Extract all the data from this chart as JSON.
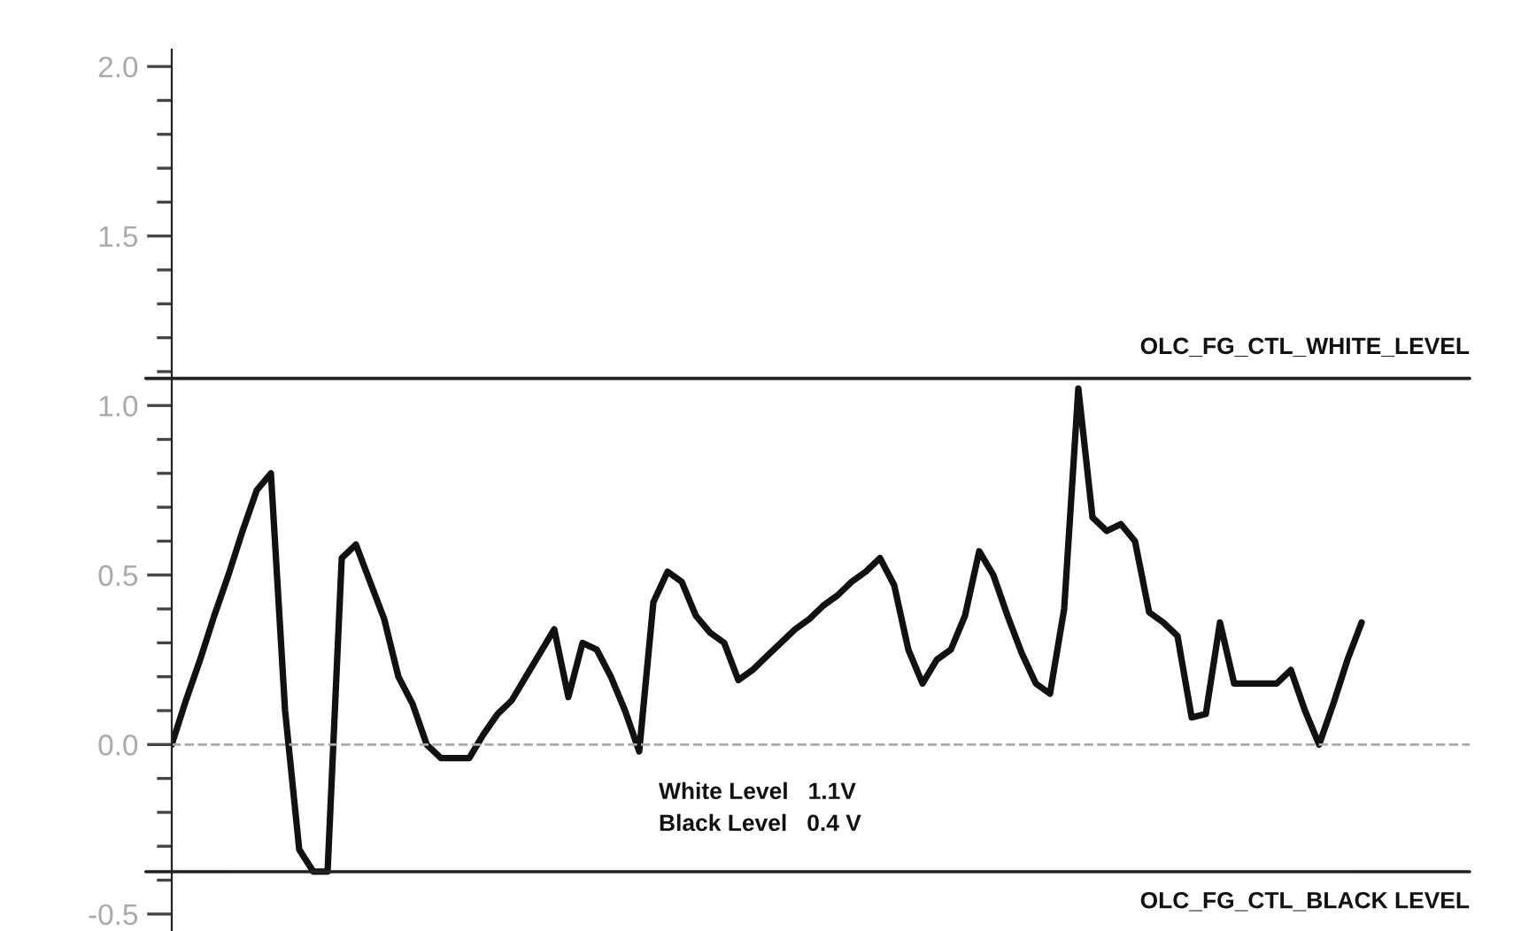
{
  "chart_data": {
    "type": "line",
    "categories": [
      null,
      null,
      null,
      null,
      null,
      null,
      null,
      null,
      null,
      null,
      null,
      null,
      null,
      null,
      null,
      null,
      null,
      null,
      null,
      null,
      null,
      null,
      null,
      null,
      null,
      null,
      null,
      null,
      null,
      null,
      null,
      null,
      null,
      null,
      null,
      null,
      null,
      null,
      null,
      null,
      null,
      null,
      null,
      null,
      null,
      null,
      null,
      null,
      null,
      null,
      null,
      null,
      null,
      null,
      null,
      null,
      null,
      null,
      null,
      null,
      null,
      null,
      null,
      null,
      null,
      null,
      null,
      null,
      null,
      null,
      null,
      null,
      null,
      null,
      null,
      null,
      null,
      null,
      null,
      null,
      null,
      null,
      null,
      null,
      null
    ],
    "series": [
      {
        "color": "#111111",
        "values": [
          0.0,
          0.13,
          0.25,
          0.38,
          0.5,
          0.63,
          0.75,
          0.8,
          0.1,
          -0.31,
          -0.375,
          -0.375,
          0.55,
          0.59,
          0.48,
          0.37,
          0.2,
          0.12,
          0.0,
          -0.04,
          -0.04,
          -0.04,
          0.03,
          0.09,
          0.13,
          0.2,
          0.27,
          0.34,
          0.14,
          0.3,
          0.28,
          0.2,
          0.1,
          -0.02,
          0.42,
          0.51,
          0.48,
          0.38,
          0.33,
          0.3,
          0.19,
          0.22,
          0.26,
          0.3,
          0.34,
          0.37,
          0.41,
          0.44,
          0.48,
          0.51,
          0.55,
          0.47,
          0.28,
          0.18,
          0.25,
          0.28,
          0.38,
          0.57,
          0.5,
          0.38,
          0.27,
          0.18,
          0.15,
          0.4,
          1.05,
          0.67,
          0.63,
          0.65,
          0.6,
          0.39,
          0.36,
          0.32,
          0.08,
          0.09,
          0.36,
          0.18,
          0.18,
          0.18,
          0.18,
          0.22,
          0.1,
          0.0,
          0.12,
          0.25,
          0.36
        ]
      }
    ],
    "ylim": [
      -0.55,
      2.05
    ],
    "yticks": [
      {
        "value": -0.5,
        "label": "-0.5"
      },
      {
        "value": -0.4,
        "label": null
      },
      {
        "value": -0.3,
        "label": null
      },
      {
        "value": -0.2,
        "label": null
      },
      {
        "value": -0.1,
        "label": null
      },
      {
        "value": 0,
        "label": "0.0"
      },
      {
        "value": 0.1,
        "label": null
      },
      {
        "value": 0.2,
        "label": null
      },
      {
        "value": 0.3,
        "label": null
      },
      {
        "value": 0.4,
        "label": null
      },
      {
        "value": 0.5,
        "label": "0.5"
      },
      {
        "value": 0.6,
        "label": null
      },
      {
        "value": 0.7,
        "label": null
      },
      {
        "value": 0.8,
        "label": null
      },
      {
        "value": 0.9,
        "label": null
      },
      {
        "value": 1.0,
        "label": "1.0"
      },
      {
        "value": 1.1,
        "label": null
      },
      {
        "value": 1.2,
        "label": null
      },
      {
        "value": 1.3,
        "label": null
      },
      {
        "value": 1.4,
        "label": null
      },
      {
        "value": 1.5,
        "label": "1.5"
      },
      {
        "value": 1.6,
        "label": null
      },
      {
        "value": 1.7,
        "label": null
      },
      {
        "value": 1.8,
        "label": null
      },
      {
        "value": 1.9,
        "label": null
      },
      {
        "value": 2.0,
        "label": "2.0"
      }
    ],
    "tick_labels": "y",
    "ref_lines": [
      {
        "axis": "y",
        "value": 1.08,
        "label": "OLC_FG_CTL_WHITE_LEVEL",
        "color": "#222222",
        "line_style": "solid"
      },
      {
        "axis": "y",
        "value": -0.375,
        "label": "OLC_FG_CTL_BLACK LEVEL",
        "color": "#222222",
        "line_style": "solid"
      },
      {
        "axis": "y",
        "value": 0,
        "label": null,
        "color": "#aaaaaa",
        "line_style": "dashed"
      }
    ],
    "annotations": [
      "White Level   1.1V",
      "Black Level   0.4 V"
    ],
    "marker": "none",
    "line_style": "solid",
    "grid": false,
    "legend": false
  }
}
